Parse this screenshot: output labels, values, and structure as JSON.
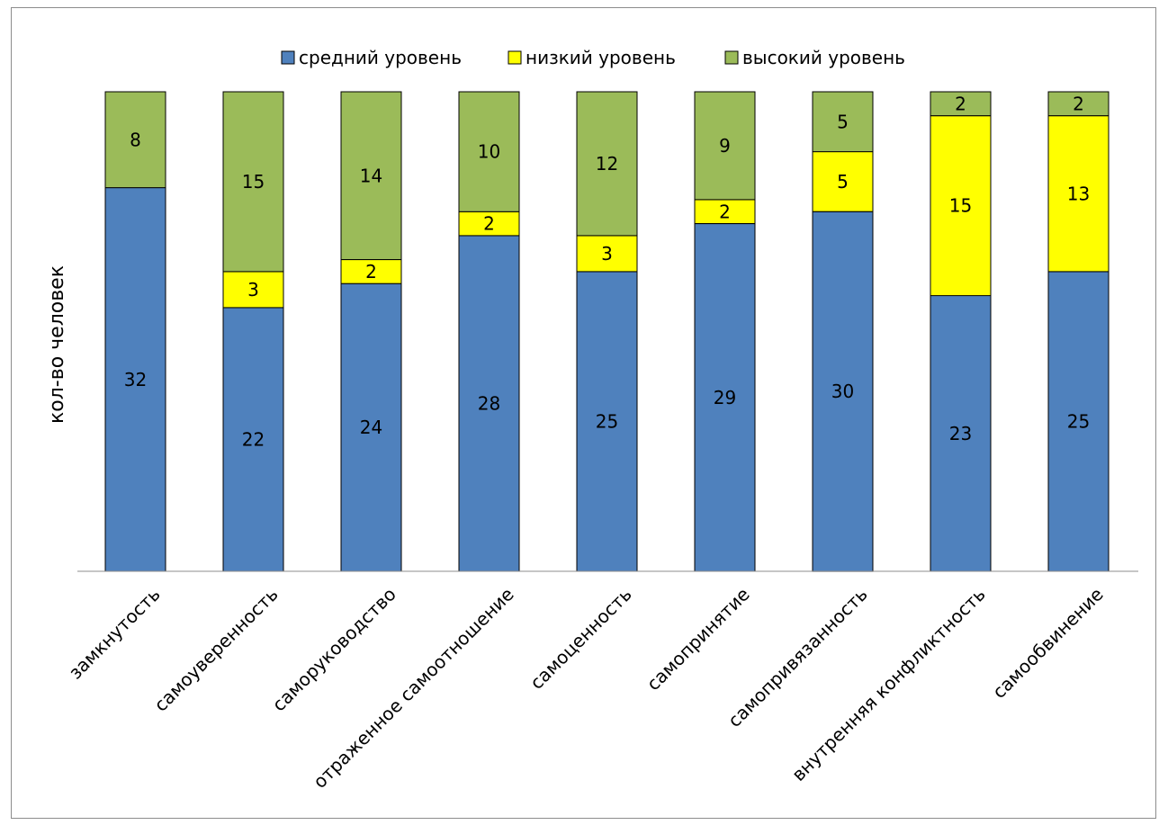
{
  "chart_data": {
    "type": "bar",
    "stacked": true,
    "title": "",
    "xlabel": "",
    "ylabel": "кол-во человек",
    "ylim": [
      0,
      40
    ],
    "grid": false,
    "legend_position": "top",
    "categories": [
      "замкнутость",
      "самоуверенность",
      "саморуководство",
      "отраженное самоотношение",
      "самоценность",
      "самопринятие",
      "самопривязанность",
      "внутренняя конфликтность",
      "самообвинение"
    ],
    "series": [
      {
        "name": "средний уровень",
        "color": "#4f81bd",
        "values": [
          32,
          22,
          24,
          28,
          25,
          29,
          30,
          23,
          25
        ],
        "labels": [
          "32",
          "22",
          "24",
          "28",
          "25",
          "29",
          "30",
          "23",
          "25"
        ]
      },
      {
        "name": "низкий уровень",
        "color": "#ffff00",
        "values": [
          0,
          3,
          2,
          2,
          3,
          2,
          5,
          15,
          13
        ],
        "labels": [
          "",
          "3",
          "2",
          "2",
          "3",
          "2",
          "5",
          "15",
          "13"
        ]
      },
      {
        "name": "высокий уровень",
        "color": "#9bbb59",
        "values": [
          8,
          15,
          14,
          10,
          12,
          9,
          5,
          2,
          2
        ],
        "labels": [
          "8",
          "15",
          "14",
          "10",
          "12",
          "9",
          "5",
          "2",
          "2"
        ]
      }
    ]
  }
}
